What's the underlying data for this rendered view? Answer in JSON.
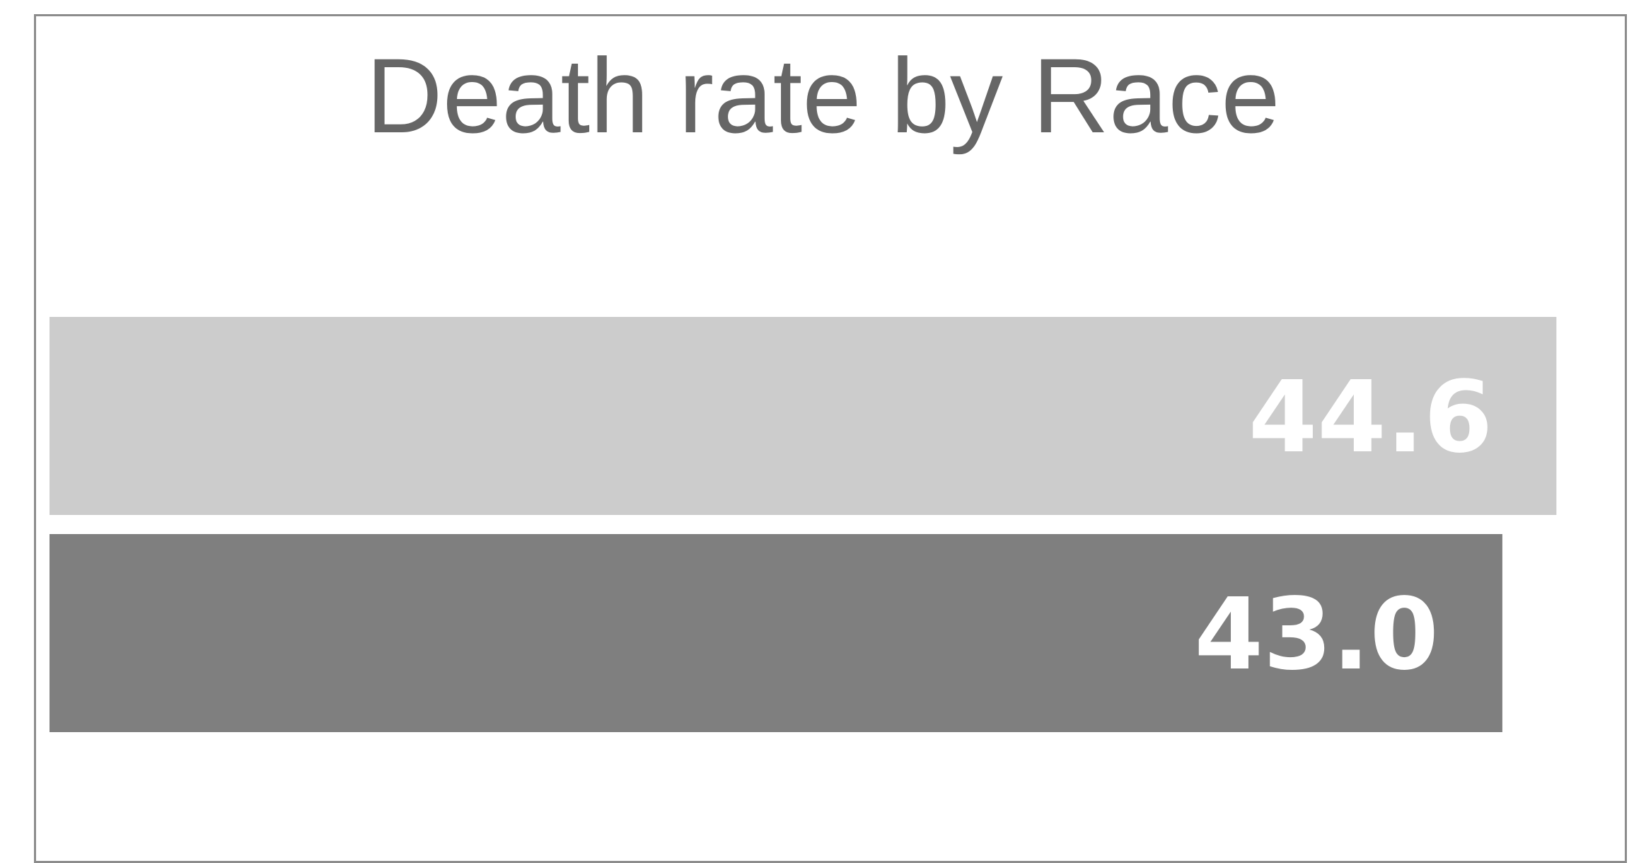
{
  "chart_data": {
    "type": "bar",
    "orientation": "horizontal",
    "title": "Death rate by Race",
    "xlabel": "",
    "ylabel": "",
    "xlim": [
      0,
      46.1
    ],
    "grid": false,
    "legend": "none",
    "series": [
      {
        "value": 44.6,
        "label": "44.6",
        "color": "#cccccc"
      },
      {
        "value": 43.0,
        "label": "43.0",
        "color": "#7f7f7f"
      }
    ]
  }
}
